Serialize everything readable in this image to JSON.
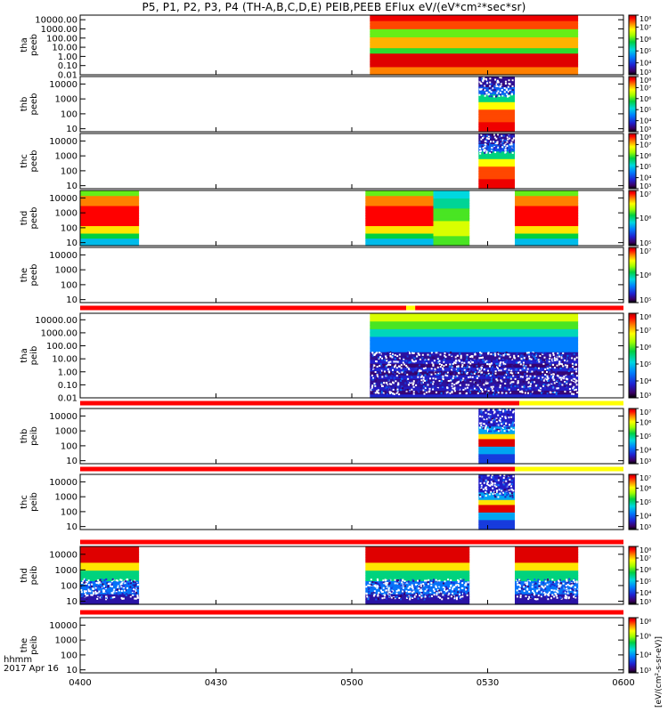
{
  "title": "P5, P1, P2, P3, P4 (TH-A,B,C,D,E) PEIB,PEEB EFlux eV/(eV*cm²*sec*sr)",
  "x_axis": {
    "units_line1": "hhmm",
    "units_line2": "2017 Apr 16",
    "ticks": [
      "0400",
      "0430",
      "0500",
      "0530",
      "0600"
    ],
    "tick_minutes": [
      0,
      30,
      60,
      90,
      120
    ]
  },
  "colorbar_label": "[eV/(cm²-s-sr-eV)]",
  "colors": {
    "flag_red": "#ff0000",
    "flag_yellow": "#ffff00",
    "frame": "#000000",
    "background": "#ffffff"
  },
  "chart_data": {
    "type": "heatmap",
    "x_range_minutes": [
      0,
      120
    ],
    "panels": [
      {
        "id": "tha-peeb",
        "label_line1": "tha",
        "label_line2": "peeb",
        "y_ticks": [
          "10000.00",
          "1000.00",
          "100.00",
          "10.00",
          "1.00",
          "0.10",
          "0.01"
        ],
        "y_log_range": [
          -2,
          4.5
        ],
        "colorbar_ticks": [
          "10⁸",
          "10⁷",
          "10⁶",
          "10⁵",
          "10⁴",
          "10³"
        ],
        "colorbar_log_range": [
          3,
          8
        ],
        "segments": [
          {
            "start": 64,
            "end": 110,
            "style": "eflux_high"
          }
        ]
      },
      {
        "id": "thb-peeb",
        "label_line1": "thb",
        "label_line2": "peeb",
        "y_ticks": [
          "10000",
          "1000",
          "100",
          "10"
        ],
        "y_log_range": [
          0.8,
          4.5
        ],
        "colorbar_ticks": [
          "10⁸",
          "10⁷",
          "10⁶",
          "10⁵",
          "10⁴",
          "10³"
        ],
        "colorbar_log_range": [
          3,
          8
        ],
        "segments": [
          {
            "start": 88,
            "end": 96,
            "style": "electron_burst"
          }
        ]
      },
      {
        "id": "thc-peeb",
        "label_line1": "thc",
        "label_line2": "peeb",
        "y_ticks": [
          "10000",
          "1000",
          "100",
          "10"
        ],
        "y_log_range": [
          0.8,
          4.5
        ],
        "colorbar_ticks": [
          "10⁸",
          "10⁷",
          "10⁶",
          "10⁵",
          "10⁴",
          "10³"
        ],
        "colorbar_log_range": [
          3,
          8
        ],
        "segments": [
          {
            "start": 88,
            "end": 96,
            "style": "electron_burst"
          }
        ]
      },
      {
        "id": "thd-peeb",
        "label_line1": "thd",
        "label_line2": "peeb",
        "y_ticks": [
          "10000",
          "1000",
          "100",
          "10"
        ],
        "y_log_range": [
          0.8,
          4.5
        ],
        "colorbar_ticks": [
          "10⁷",
          "10⁶",
          "10⁵"
        ],
        "colorbar_log_range": [
          4.5,
          7.5
        ],
        "segments": [
          {
            "start": 0,
            "end": 13,
            "style": "sheath"
          },
          {
            "start": 63,
            "end": 78,
            "style": "sheath"
          },
          {
            "start": 78,
            "end": 86,
            "style": "sheath_soft"
          },
          {
            "start": 96,
            "end": 110,
            "style": "sheath"
          }
        ]
      },
      {
        "id": "the-peeb",
        "label_line1": "the",
        "label_line2": "peeb",
        "y_ticks": [
          "10000",
          "1000",
          "100",
          "10"
        ],
        "y_log_range": [
          0.8,
          4.5
        ],
        "colorbar_ticks": [
          "10⁷",
          "10⁶",
          "10⁵"
        ],
        "colorbar_log_range": [
          4.5,
          7.5
        ],
        "segments": []
      },
      {
        "id": "tha-peib",
        "label_line1": "tha",
        "label_line2": "peib",
        "y_ticks": [
          "10000.00",
          "1000.00",
          "100.00",
          "10.00",
          "1.00",
          "0.10",
          "0.01"
        ],
        "y_log_range": [
          -2,
          4.5
        ],
        "colorbar_ticks": [
          "10⁸",
          "10⁷",
          "10⁶",
          "10⁵",
          "10⁴",
          "10³"
        ],
        "colorbar_log_range": [
          3,
          8
        ],
        "segments": [
          {
            "start": 64,
            "end": 110,
            "style": "ion_low"
          }
        ]
      },
      {
        "id": "thb-peib",
        "label_line1": "thb",
        "label_line2": "peib",
        "y_ticks": [
          "10000",
          "1000",
          "100",
          "10"
        ],
        "y_log_range": [
          0.8,
          4.5
        ],
        "colorbar_ticks": [
          "10⁷",
          "10⁶",
          "10⁵",
          "10⁴",
          "10³"
        ],
        "colorbar_log_range": [
          3,
          7.5
        ],
        "segments": [
          {
            "start": 88,
            "end": 96,
            "style": "ion_burst"
          }
        ]
      },
      {
        "id": "thc-peib",
        "label_line1": "thc",
        "label_line2": "peib",
        "y_ticks": [
          "10000",
          "1000",
          "100",
          "10"
        ],
        "y_log_range": [
          0.8,
          4.5
        ],
        "colorbar_ticks": [
          "10⁷",
          "10⁶",
          "10⁵",
          "10⁴",
          "10³"
        ],
        "colorbar_log_range": [
          3,
          7.5
        ],
        "segments": [
          {
            "start": 88,
            "end": 96,
            "style": "ion_burst"
          }
        ]
      },
      {
        "id": "thd-peib",
        "label_line1": "thd",
        "label_line2": "peib",
        "y_ticks": [
          "10000",
          "1000",
          "100",
          "10"
        ],
        "y_log_range": [
          0.8,
          4.5
        ],
        "colorbar_ticks": [
          "10⁸",
          "10⁷",
          "10⁶",
          "10⁵",
          "10⁴",
          "10³"
        ],
        "colorbar_log_range": [
          3,
          8
        ],
        "segments": [
          {
            "start": 0,
            "end": 13,
            "style": "ion_sheath"
          },
          {
            "start": 63,
            "end": 86,
            "style": "ion_sheath"
          },
          {
            "start": 96,
            "end": 110,
            "style": "ion_sheath"
          }
        ]
      },
      {
        "id": "the-peib",
        "label_line1": "the",
        "label_line2": "peib",
        "y_ticks": [
          "10000",
          "1000",
          "100",
          "10"
        ],
        "y_log_range": [
          0.8,
          4.5
        ],
        "colorbar_ticks": [
          "10⁶",
          "10⁵",
          "10⁴",
          "10³"
        ],
        "colorbar_log_range": [
          3,
          6.5
        ],
        "segments": []
      }
    ],
    "flag_bars": [
      {
        "after_panel": 4,
        "segments": [
          {
            "start": 0,
            "end": 72,
            "color": "red"
          },
          {
            "start": 72,
            "end": 74,
            "color": "yellow"
          },
          {
            "start": 74,
            "end": 120,
            "color": "red"
          }
        ]
      },
      {
        "after_panel": 5,
        "segments": [
          {
            "start": 0,
            "end": 97,
            "color": "red"
          },
          {
            "start": 97,
            "end": 120,
            "color": "yellow"
          }
        ]
      },
      {
        "after_panel": 6,
        "segments": [
          {
            "start": 0,
            "end": 96,
            "color": "red"
          },
          {
            "start": 96,
            "end": 120,
            "color": "yellow"
          }
        ]
      },
      {
        "after_panel": 7,
        "segments": [
          {
            "start": 0,
            "end": 120,
            "color": "red"
          }
        ]
      },
      {
        "after_panel": 8,
        "segments": [
          {
            "start": 0,
            "end": 120,
            "color": "red"
          }
        ]
      }
    ]
  }
}
